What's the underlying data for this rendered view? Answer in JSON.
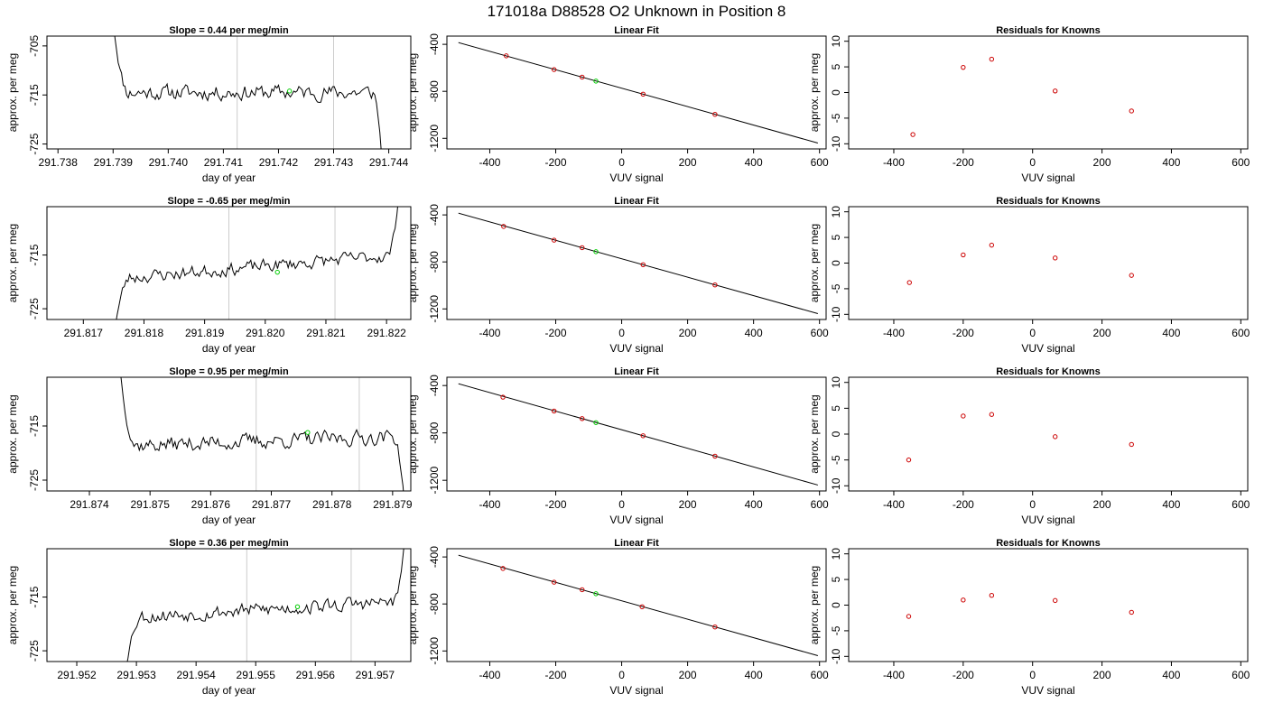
{
  "figure": {
    "title": "171018a     D88528   O2 Unknown in Position  8"
  },
  "chart_data": [
    {
      "type": "line",
      "row": 1,
      "col": 1,
      "title": "Slope =  0.44  per meg/min",
      "xlabel": "day of year",
      "ylabel": "approx. per meg",
      "xlim": [
        291.7378,
        291.7444
      ],
      "ylim": [
        -726,
        -703
      ],
      "xticks": [
        291.738,
        291.739,
        291.74,
        291.741,
        291.742,
        291.743,
        291.744
      ],
      "xtick_labels": [
        "291.738",
        "291.739",
        "291.740",
        "291.741",
        "291.742",
        "291.743",
        "291.744"
      ],
      "yticks": [
        -705,
        -715,
        -725
      ],
      "ytick_labels": [
        "-705",
        "-715",
        "-725"
      ],
      "series": [
        {
          "color": "#000000",
          "x_range": [
            291.739,
            291.7439
          ],
          "center": -714.5,
          "amplitude": 2.4,
          "seed": 11,
          "start_value": -700,
          "end_value": -732
        }
      ],
      "vlines": [
        291.74125,
        291.743
      ],
      "vline_color": "#cccccc",
      "marker": {
        "x": 291.7422,
        "y": -714.2,
        "color": "#00cc00"
      }
    },
    {
      "type": "scatter",
      "row": 1,
      "col": 2,
      "title": "Linear Fit",
      "xlabel": "VUV signal",
      "ylabel": "approx. per meg",
      "xlim": [
        -530,
        620
      ],
      "ylim": [
        -1290,
        -330
      ],
      "xticks": [
        -400,
        -200,
        0,
        200,
        400,
        600
      ],
      "xtick_labels": [
        "-400",
        "-200",
        "0",
        "200",
        "400",
        "600"
      ],
      "yticks": [
        -400,
        -800,
        -1200
      ],
      "ytick_labels": [
        "-400",
        "-800",
        "-1200"
      ],
      "line": {
        "x": [
          -495,
          595
        ],
        "y": [
          -385,
          -1240
        ],
        "color": "#000000"
      },
      "points": {
        "color": "#cc0000",
        "x": [
          -350,
          -205,
          -120,
          65,
          283
        ],
        "y": [
          -498,
          -615,
          -679,
          -824,
          -996
        ]
      },
      "unknown": {
        "x": -78,
        "y": -713,
        "color": "#00cc00"
      }
    },
    {
      "type": "scatter",
      "row": 1,
      "col": 3,
      "title": "Residuals for Knowns",
      "xlabel": "VUV signal",
      "ylabel": "approx. per meg",
      "xlim": [
        -530,
        620
      ],
      "ylim": [
        -11,
        11
      ],
      "xticks": [
        -400,
        -200,
        0,
        200,
        400,
        600
      ],
      "xtick_labels": [
        "-400",
        "-200",
        "0",
        "200",
        "400",
        "600"
      ],
      "yticks": [
        10,
        5,
        0,
        -5,
        -10
      ],
      "ytick_labels": [
        "10",
        "5",
        "0",
        "-5",
        "-10"
      ],
      "points": {
        "color": "#cc0000",
        "x": [
          -345,
          -200,
          -118,
          65,
          285
        ],
        "y": [
          -8.2,
          4.9,
          6.5,
          0.3,
          -3.6
        ]
      }
    },
    {
      "type": "line",
      "row": 2,
      "col": 1,
      "title": "Slope =  -0.65  per meg/min",
      "xlabel": "day of year",
      "ylabel": "approx. per meg",
      "xlim": [
        291.8164,
        291.8224
      ],
      "ylim": [
        -727,
        -706
      ],
      "xticks": [
        291.817,
        291.818,
        291.819,
        291.82,
        291.821,
        291.822
      ],
      "xtick_labels": [
        "291.817",
        "291.818",
        "291.819",
        "291.820",
        "291.821",
        "291.822"
      ],
      "yticks": [
        -715,
        -725
      ],
      "ytick_labels": [
        "-715",
        "-725"
      ],
      "series": [
        {
          "color": "#000000",
          "x_range": [
            291.8175,
            291.8222
          ],
          "center": -717.2,
          "amplitude": 1.9,
          "trend": 4.5,
          "seed": 23,
          "start_value": -730,
          "end_value": -704
        }
      ],
      "vlines": [
        291.8194,
        291.82115
      ],
      "vline_color": "#cccccc",
      "marker": {
        "x": 291.8202,
        "y": -718.2,
        "color": "#00cc00"
      }
    },
    {
      "type": "scatter",
      "row": 2,
      "col": 2,
      "title": "Linear Fit",
      "xlabel": "VUV signal",
      "ylabel": "approx. per meg",
      "xlim": [
        -530,
        620
      ],
      "ylim": [
        -1290,
        -330
      ],
      "xticks": [
        -400,
        -200,
        0,
        200,
        400,
        600
      ],
      "xtick_labels": [
        "-400",
        "-200",
        "0",
        "200",
        "400",
        "600"
      ],
      "yticks": [
        -400,
        -800,
        -1200
      ],
      "ytick_labels": [
        "-400",
        "-800",
        "-1200"
      ],
      "line": {
        "x": [
          -495,
          595
        ],
        "y": [
          -385,
          -1240
        ],
        "color": "#000000"
      },
      "points": {
        "color": "#cc0000",
        "x": [
          -358,
          -205,
          -120,
          65,
          283
        ],
        "y": [
          -498,
          -615,
          -679,
          -824,
          -996
        ]
      },
      "unknown": {
        "x": -78,
        "y": -713,
        "color": "#00cc00"
      }
    },
    {
      "type": "scatter",
      "row": 2,
      "col": 3,
      "title": "Residuals for Knowns",
      "xlabel": "VUV signal",
      "ylabel": "approx. per meg",
      "xlim": [
        -530,
        620
      ],
      "ylim": [
        -11,
        11
      ],
      "xticks": [
        -400,
        -200,
        0,
        200,
        400,
        600
      ],
      "xtick_labels": [
        "-400",
        "-200",
        "0",
        "200",
        "400",
        "600"
      ],
      "yticks": [
        10,
        5,
        0,
        -5,
        -10
      ],
      "ytick_labels": [
        "10",
        "5",
        "0",
        "-5",
        "-10"
      ],
      "points": {
        "color": "#cc0000",
        "x": [
          -355,
          -200,
          -118,
          65,
          285
        ],
        "y": [
          -3.8,
          1.6,
          3.5,
          1.0,
          -2.4
        ]
      }
    },
    {
      "type": "line",
      "row": 3,
      "col": 1,
      "title": "Slope =  0.95  per meg/min",
      "xlabel": "day of year",
      "ylabel": "approx. per meg",
      "xlim": [
        291.8733,
        291.8793
      ],
      "ylim": [
        -727,
        -706
      ],
      "xticks": [
        291.874,
        291.875,
        291.876,
        291.877,
        291.878,
        291.879
      ],
      "xtick_labels": [
        "291.874",
        "291.875",
        "291.876",
        "291.877",
        "291.878",
        "291.879"
      ],
      "yticks": [
        -715,
        -725
      ],
      "ytick_labels": [
        "-715",
        "-725"
      ],
      "series": [
        {
          "color": "#000000",
          "x_range": [
            291.8745,
            291.8792
          ],
          "center": -717.8,
          "amplitude": 2.2,
          "trend": 1.8,
          "seed": 37,
          "start_value": -704,
          "end_value": -730
        }
      ],
      "vlines": [
        291.87675,
        291.87845
      ],
      "vline_color": "#cccccc",
      "marker": {
        "x": 291.8776,
        "y": -716.2,
        "color": "#00cc00"
      }
    },
    {
      "type": "scatter",
      "row": 3,
      "col": 2,
      "title": "Linear Fit",
      "xlabel": "VUV signal",
      "ylabel": "approx. per meg",
      "xlim": [
        -530,
        620
      ],
      "ylim": [
        -1290,
        -330
      ],
      "xticks": [
        -400,
        -200,
        0,
        200,
        400,
        600
      ],
      "xtick_labels": [
        "-400",
        "-200",
        "0",
        "200",
        "400",
        "600"
      ],
      "yticks": [
        -400,
        -800,
        -1200
      ],
      "ytick_labels": [
        "-400",
        "-800",
        "-1200"
      ],
      "line": {
        "x": [
          -495,
          595
        ],
        "y": [
          -385,
          -1240
        ],
        "color": "#000000"
      },
      "points": {
        "color": "#cc0000",
        "x": [
          -360,
          -205,
          -120,
          65,
          283
        ],
        "y": [
          -498,
          -615,
          -679,
          -824,
          -996
        ]
      },
      "unknown": {
        "x": -78,
        "y": -713,
        "color": "#00cc00"
      }
    },
    {
      "type": "scatter",
      "row": 3,
      "col": 3,
      "title": "Residuals for Knowns",
      "xlabel": "VUV signal",
      "ylabel": "approx. per meg",
      "xlim": [
        -530,
        620
      ],
      "ylim": [
        -11,
        11
      ],
      "xticks": [
        -400,
        -200,
        0,
        200,
        400,
        600
      ],
      "xtick_labels": [
        "-400",
        "-200",
        "0",
        "200",
        "400",
        "600"
      ],
      "yticks": [
        10,
        5,
        0,
        -5,
        -10
      ],
      "ytick_labels": [
        "10",
        "5",
        "0",
        "-5",
        "-10"
      ],
      "points": {
        "color": "#cc0000",
        "x": [
          -357,
          -200,
          -118,
          65,
          285
        ],
        "y": [
          -5.0,
          3.5,
          3.8,
          -0.5,
          -2.0
        ]
      }
    },
    {
      "type": "line",
      "row": 4,
      "col": 1,
      "title": "Slope =  0.36  per meg/min",
      "xlabel": "day of year",
      "ylabel": "approx. per meg",
      "xlim": [
        291.9515,
        291.9576
      ],
      "ylim": [
        -727,
        -706
      ],
      "xticks": [
        291.952,
        291.953,
        291.954,
        291.955,
        291.956,
        291.957
      ],
      "xtick_labels": [
        "291.952",
        "291.953",
        "291.954",
        "291.955",
        "291.956",
        "291.957"
      ],
      "yticks": [
        -715,
        -725
      ],
      "ytick_labels": [
        "-715",
        "-725"
      ],
      "series": [
        {
          "color": "#000000",
          "x_range": [
            291.9528,
            291.9575
          ],
          "center": -717.3,
          "amplitude": 2.1,
          "trend": 3.0,
          "seed": 53,
          "start_value": -730,
          "end_value": -704
        }
      ],
      "vlines": [
        291.95485,
        291.9566
      ],
      "vline_color": "#cccccc",
      "marker": {
        "x": 291.9557,
        "y": -716.8,
        "color": "#00cc00"
      }
    },
    {
      "type": "scatter",
      "row": 4,
      "col": 2,
      "title": "Linear Fit",
      "xlabel": "VUV signal",
      "ylabel": "approx. per meg",
      "xlim": [
        -530,
        620
      ],
      "ylim": [
        -1290,
        -330
      ],
      "xticks": [
        -400,
        -200,
        0,
        200,
        400,
        600
      ],
      "xtick_labels": [
        "-400",
        "-200",
        "0",
        "200",
        "400",
        "600"
      ],
      "yticks": [
        -400,
        -800,
        -1200
      ],
      "ytick_labels": [
        "-400",
        "-800",
        "-1200"
      ],
      "line": {
        "x": [
          -495,
          595
        ],
        "y": [
          -385,
          -1240
        ],
        "color": "#000000"
      },
      "points": {
        "color": "#cc0000",
        "x": [
          -360,
          -205,
          -120,
          62,
          283
        ],
        "y": [
          -498,
          -615,
          -679,
          -824,
          -996
        ]
      },
      "unknown": {
        "x": -78,
        "y": -713,
        "color": "#00cc00"
      }
    },
    {
      "type": "scatter",
      "row": 4,
      "col": 3,
      "title": "Residuals for Knowns",
      "xlabel": "VUV signal",
      "ylabel": "approx. per meg",
      "xlim": [
        -530,
        620
      ],
      "ylim": [
        -11,
        11
      ],
      "xticks": [
        -400,
        -200,
        0,
        200,
        400,
        600
      ],
      "xtick_labels": [
        "-400",
        "-200",
        "0",
        "200",
        "400",
        "600"
      ],
      "yticks": [
        10,
        5,
        0,
        -5,
        -10
      ],
      "ytick_labels": [
        "10",
        "5",
        "0",
        "-5",
        "-10"
      ],
      "points": {
        "color": "#cc0000",
        "x": [
          -357,
          -200,
          -118,
          65,
          285
        ],
        "y": [
          -2.2,
          1.0,
          1.9,
          0.9,
          -1.4
        ]
      }
    }
  ]
}
